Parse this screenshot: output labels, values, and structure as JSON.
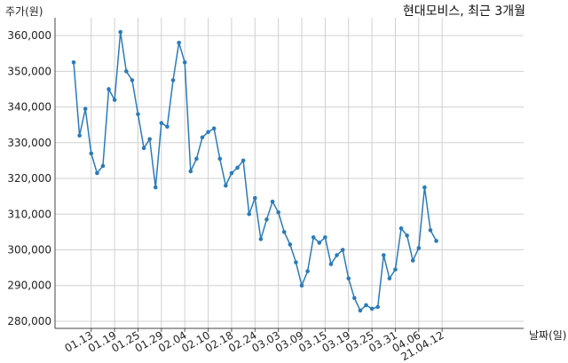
{
  "chart_data": {
    "type": "line",
    "title": "현대모비스, 최근 3개월",
    "ylabel": "주가(원)",
    "xlabel": "날짜(일)",
    "ylim": [
      278000,
      365000
    ],
    "y_ticks": [
      280000,
      290000,
      300000,
      310000,
      320000,
      330000,
      340000,
      350000,
      360000
    ],
    "y_tick_labels": [
      "280,000",
      "290,000",
      "300,000",
      "310,000",
      "320,000",
      "330,000",
      "340,000",
      "350,000",
      "360,000"
    ],
    "x_tick_labels": [
      "01.13",
      "01.19",
      "01.25",
      "01.29",
      "02.04",
      "02.10",
      "02.18",
      "02.24",
      "03.03",
      "03.09",
      "03.15",
      "03.19",
      "03.25",
      "03.31",
      "04.06",
      "21.04.12"
    ],
    "x_tick_index": [
      3,
      7,
      11,
      15,
      19,
      23,
      27,
      31,
      35,
      39,
      43,
      47,
      51,
      55,
      59,
      63
    ],
    "grid": true,
    "line_color": "#2b7bb9",
    "series": [
      {
        "values": [
          352500,
          332000,
          339500,
          327000,
          321500,
          323500,
          345000,
          342000,
          361000,
          350000,
          347500,
          338000,
          328500,
          331000,
          317500,
          335500,
          334500,
          347500,
          358000,
          352500,
          322000,
          325500,
          331500,
          333000,
          334000,
          325500,
          318000,
          321500,
          323000,
          325000,
          310000,
          314500,
          303000,
          308500,
          313500,
          310500,
          305000,
          301500,
          296500,
          290000,
          294000,
          303500,
          302000,
          303500,
          296000,
          298500,
          300000,
          292000,
          286500,
          283000,
          284500,
          283500,
          284000,
          298500,
          292000,
          294500,
          306000,
          304000,
          297000,
          300500,
          317500,
          305500,
          302500
        ]
      }
    ]
  }
}
